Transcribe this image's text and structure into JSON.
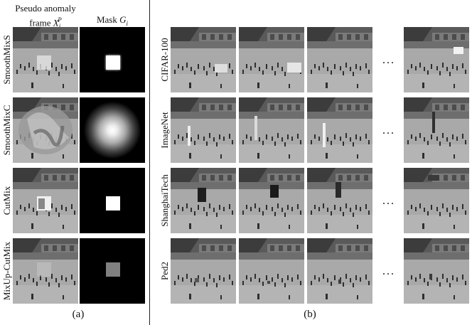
{
  "panel_a": {
    "header_anomaly_line1": "Pseudo anomaly",
    "header_anomaly_line2": "frame",
    "header_anomaly_symbol": "X",
    "header_anomaly_sub": "i",
    "header_anomaly_sup": "P",
    "header_mask_text": "Mask",
    "header_mask_symbol": "G",
    "header_mask_sub": "i",
    "rows": [
      "SmoothMixS",
      "SmoothMixC",
      "CutMix",
      "MixUp-CutMix"
    ],
    "label": "(a)"
  },
  "panel_b": {
    "rows": [
      "CIFAR-100",
      "ImageNet",
      "ShanghaiTech",
      "Ped2"
    ],
    "ellipsis": "...",
    "label": "(b)"
  }
}
